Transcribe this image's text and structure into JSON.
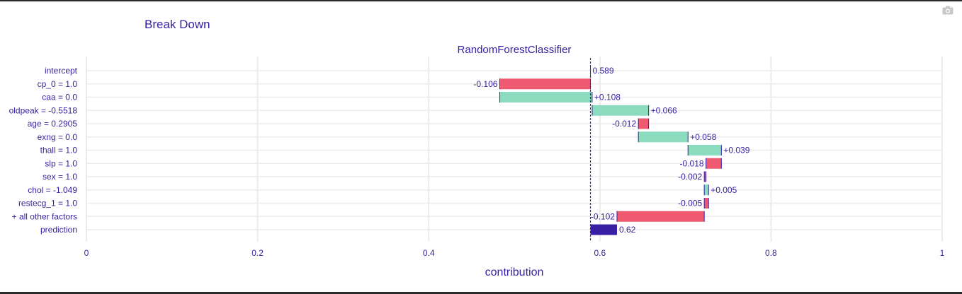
{
  "header": {
    "title": "Break Down",
    "toolbar_icon": "camera-icon"
  },
  "colors": {
    "text": "#371ea3",
    "negative": "#f05a71",
    "positive": "#8bdcbe",
    "prediction": "#371ea3",
    "grid": "#ebebeb"
  },
  "chart_data": {
    "type": "bar",
    "subtype": "waterfall",
    "title": "RandomForestClassifier",
    "xlabel": "contribution",
    "ylabel": "",
    "xlim": [
      0,
      1
    ],
    "xticks": [
      0,
      0.2,
      0.4,
      0.6,
      0.8,
      1
    ],
    "xtick_labels": [
      "0",
      "0.2",
      "0.4",
      "0.6",
      "0.8",
      "1"
    ],
    "baseline": 0.589,
    "grid": true,
    "categories": [
      "intercept",
      "cp_0 = 1.0",
      "caa = 0.0",
      "oldpeak = -0.5518",
      "age = 0.2905",
      "exng = 0.0",
      "thall = 1.0",
      "slp = 1.0",
      "sex = 1.0",
      "chol = -1.049",
      "restecg_1 = 1.0",
      "+ all other factors",
      "prediction"
    ],
    "values": [
      0.589,
      -0.106,
      0.108,
      0.066,
      -0.012,
      0.058,
      0.039,
      -0.018,
      -0.002,
      0.005,
      -0.005,
      -0.102,
      0.62
    ],
    "value_labels": [
      "0.589",
      "-0.106",
      "+0.108",
      "+0.066",
      "-0.012",
      "+0.058",
      "+0.039",
      "-0.018",
      "-0.002",
      "+0.005",
      "-0.005",
      "-0.102",
      "0.62"
    ]
  }
}
